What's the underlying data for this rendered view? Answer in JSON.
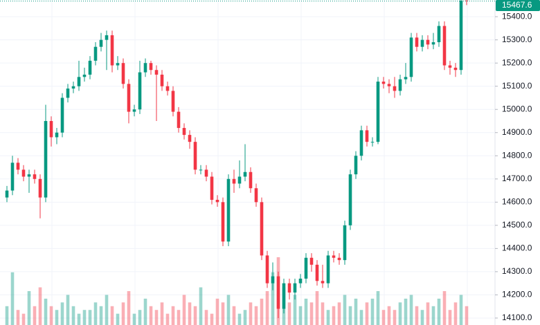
{
  "chart_data": {
    "type": "candlestick",
    "up_color": "#089981",
    "down_color": "#f23645",
    "ylim": [
      14070,
      15472
    ],
    "yticks": [
      {
        "value": 14100,
        "label": "14100.0"
      },
      {
        "value": 14200,
        "label": "14200.0"
      },
      {
        "value": 14300,
        "label": "14300.0"
      },
      {
        "value": 14400,
        "label": "14400.0"
      },
      {
        "value": 14500,
        "label": "14500.0"
      },
      {
        "value": 14600,
        "label": "14600.0"
      },
      {
        "value": 14700,
        "label": "14700.0"
      },
      {
        "value": 14800,
        "label": "14800.0"
      },
      {
        "value": 14900,
        "label": "14900.0"
      },
      {
        "value": 15000,
        "label": "15000.0"
      },
      {
        "value": 15100,
        "label": "15100.0"
      },
      {
        "value": 15200,
        "label": "15200.0"
      },
      {
        "value": 15300,
        "label": "15300.0"
      },
      {
        "value": 15400,
        "label": "15400.0"
      }
    ],
    "grid": true,
    "open": [
      14620,
      14650,
      14770,
      14740,
      14710,
      14720,
      14700,
      14620,
      14950,
      14880,
      14900,
      15050,
      15090,
      15100,
      15140,
      15150,
      15210,
      15270,
      15300,
      15320,
      15190,
      15200,
      15110,
      14990,
      15000,
      15160,
      15200,
      15170,
      15150,
      15100,
      15080,
      14990,
      14920,
      14890,
      14860,
      14740,
      14740,
      14710,
      14610,
      14600,
      14430,
      14700,
      14680,
      14710,
      14730,
      14660,
      14600,
      14370,
      14250,
      14280,
      14140,
      14250,
      14210,
      14250,
      14270,
      14360,
      14330,
      14260,
      14250,
      14370,
      14360,
      14350,
      14500,
      14720,
      14800,
      14910,
      14860,
      14860,
      15120,
      15110,
      15100,
      15080,
      15130,
      15140,
      15310,
      15270,
      15300,
      15280,
      15290,
      15360,
      15190,
      15180,
      15170,
      15470
    ],
    "high": [
      14670,
      14800,
      14790,
      14760,
      14740,
      14740,
      14720,
      15020,
      14970,
      14920,
      15070,
      15110,
      15120,
      15210,
      15180,
      15230,
      15290,
      15330,
      15340,
      15340,
      15230,
      15220,
      15130,
      15020,
      15210,
      15220,
      15210,
      15190,
      15170,
      15120,
      15100,
      15010,
      14940,
      14910,
      14880,
      14760,
      14760,
      14730,
      14630,
      14620,
      14720,
      14740,
      14780,
      14850,
      14750,
      14680,
      14620,
      14390,
      14340,
      14300,
      14270,
      14270,
      14270,
      14290,
      14380,
      14380,
      14350,
      14330,
      14390,
      14390,
      14380,
      14520,
      14740,
      14820,
      14930,
      14930,
      14880,
      15140,
      15140,
      15130,
      15140,
      15150,
      15200,
      15330,
      15330,
      15320,
      15320,
      15330,
      15380,
      15380,
      15210,
      15200,
      15471,
      15471
    ],
    "low": [
      14600,
      14630,
      14720,
      14690,
      14640,
      14680,
      14530,
      14600,
      14840,
      14850,
      14880,
      15030,
      15070,
      15080,
      15120,
      15130,
      15190,
      15250,
      15170,
      15160,
      15170,
      15090,
      14940,
      14970,
      14980,
      15140,
      15150,
      14950,
      15080,
      15060,
      14970,
      14900,
      14870,
      14830,
      14720,
      14720,
      14690,
      14590,
      14580,
      14410,
      14410,
      14640,
      14660,
      14690,
      14640,
      14580,
      14350,
      14230,
      14220,
      14100,
      14120,
      14180,
      14180,
      14230,
      14250,
      14300,
      14240,
      14230,
      14230,
      14340,
      14330,
      14330,
      14480,
      14700,
      14780,
      14840,
      14840,
      14850,
      15090,
      15070,
      15050,
      15060,
      15110,
      15120,
      15250,
      15250,
      15260,
      15260,
      15270,
      15170,
      15150,
      15140,
      15150,
      15450
    ],
    "close": [
      14650,
      14770,
      14740,
      14710,
      14720,
      14700,
      14620,
      14950,
      14880,
      14900,
      15050,
      15090,
      15100,
      15140,
      15150,
      15210,
      15270,
      15300,
      15320,
      15190,
      15200,
      15110,
      14990,
      15000,
      15160,
      15200,
      15170,
      15150,
      15100,
      15080,
      14990,
      14920,
      14890,
      14860,
      14740,
      14740,
      14710,
      14610,
      14600,
      14430,
      14700,
      14680,
      14710,
      14730,
      14660,
      14600,
      14370,
      14250,
      14280,
      14140,
      14250,
      14210,
      14250,
      14270,
      14360,
      14330,
      14260,
      14250,
      14370,
      14360,
      14350,
      14500,
      14720,
      14800,
      14910,
      14860,
      14860,
      15120,
      15110,
      15100,
      15080,
      15130,
      15140,
      15310,
      15270,
      15300,
      15280,
      15290,
      15360,
      15190,
      15180,
      15170,
      15470,
      15467.6
    ],
    "volume": [
      25,
      70,
      20,
      15,
      45,
      25,
      50,
      35,
      25,
      20,
      30,
      40,
      25,
      15,
      20,
      20,
      30,
      25,
      40,
      25,
      15,
      30,
      45,
      15,
      20,
      35,
      25,
      20,
      30,
      15,
      25,
      20,
      40,
      30,
      25,
      50,
      20,
      15,
      35,
      30,
      40,
      25,
      15,
      20,
      30,
      25,
      35,
      45,
      70,
      90,
      50,
      30,
      40,
      25,
      35,
      30,
      45,
      30,
      20,
      25,
      30,
      40,
      25,
      35,
      20,
      30,
      35,
      45,
      20,
      25,
      20,
      30,
      35,
      40,
      25,
      20,
      30,
      25,
      35,
      45,
      20,
      30,
      40,
      25
    ]
  }
}
